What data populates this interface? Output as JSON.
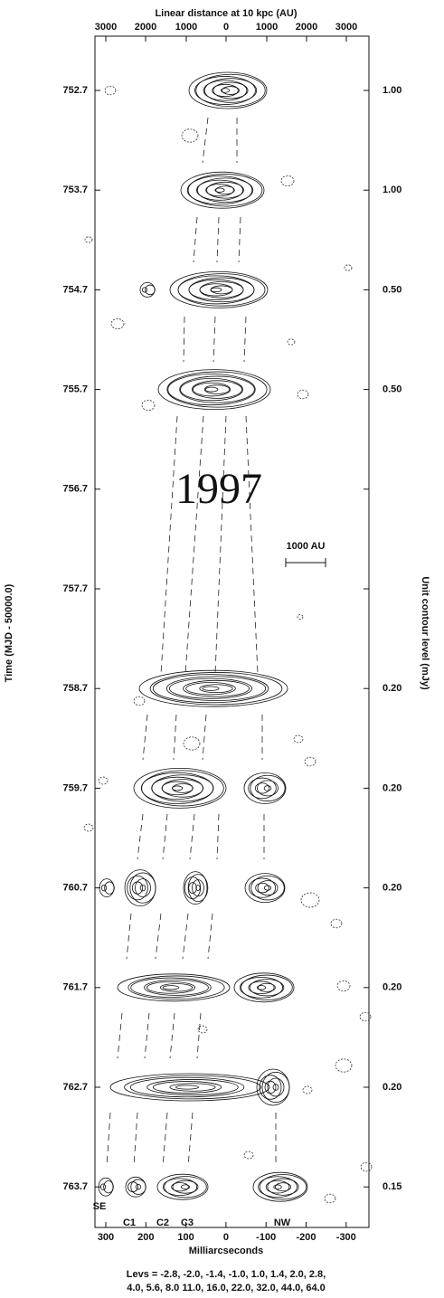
{
  "figure": {
    "top_axis": {
      "title": "Linear distance at 10 kpc (AU)",
      "ticks": [
        "3000",
        "2000",
        "1000",
        "0",
        "1000",
        "2000",
        "3000"
      ]
    },
    "bottom_axis": {
      "title": "Milliarcseconds",
      "ticks": [
        "300",
        "200",
        "100",
        "0",
        "-100",
        "-200",
        "-300"
      ]
    },
    "left_axis": {
      "title": "Time (MJD - 50000.0)",
      "ticks": [
        "752.7",
        "753.7",
        "754.7",
        "755.7",
        "756.7",
        "757.7",
        "758.7",
        "759.7",
        "760.7",
        "761.7",
        "762.7",
        "763.7"
      ]
    },
    "right_axis": {
      "title": "Unit contour level (mJy)",
      "ticks": [
        "1.00",
        "1.00",
        "0.50",
        "0.50",
        "0.20",
        "0.20",
        "0.20",
        "0.20",
        "0.20",
        "0.15"
      ]
    },
    "year": "1997",
    "scale_bar": "1000 AU",
    "component_labels": [
      "SE",
      "C1",
      "C2",
      "C3",
      "NW"
    ],
    "levels": [
      "Levs = -2.8, -2.0, -1.4, -1.0, 1.0, 1.4, 2.0, 2.8,",
      "4.0, 5.6, 8.0 11.0, 16.0, 22.0, 32.0, 44.0, 64.0"
    ]
  }
}
